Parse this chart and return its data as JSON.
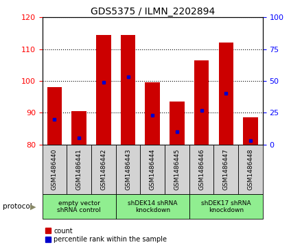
{
  "title": "GDS5375 / ILMN_2202894",
  "samples": [
    "GSM1486440",
    "GSM1486441",
    "GSM1486442",
    "GSM1486443",
    "GSM1486444",
    "GSM1486445",
    "GSM1486446",
    "GSM1486447",
    "GSM1486448"
  ],
  "count_values": [
    98,
    90.5,
    114.5,
    114.5,
    99.5,
    93.5,
    106.5,
    112,
    88.5
  ],
  "percentile_values": [
    20,
    5,
    49,
    53,
    23,
    10,
    27,
    40,
    3
  ],
  "ylim_left": [
    80,
    120
  ],
  "ylim_right": [
    0,
    100
  ],
  "yticks_left": [
    80,
    90,
    100,
    110,
    120
  ],
  "yticks_right": [
    0,
    25,
    50,
    75,
    100
  ],
  "bar_bottom": 80,
  "bar_color": "#cc0000",
  "percentile_color": "#0000cc",
  "protocol_groups": [
    {
      "label": "empty vector\nshRNA control",
      "start": 0,
      "end": 3,
      "color": "#90ee90"
    },
    {
      "label": "shDEK14 shRNA\nknockdown",
      "start": 3,
      "end": 6,
      "color": "#90ee90"
    },
    {
      "label": "shDEK17 shRNA\nknockdown",
      "start": 6,
      "end": 9,
      "color": "#90ee90"
    }
  ],
  "legend_count_label": "count",
  "legend_percentile_label": "percentile rank within the sample",
  "protocol_label": "protocol",
  "gray_cell_color": "#d3d3d3",
  "plot_bg_color": "#ffffff"
}
